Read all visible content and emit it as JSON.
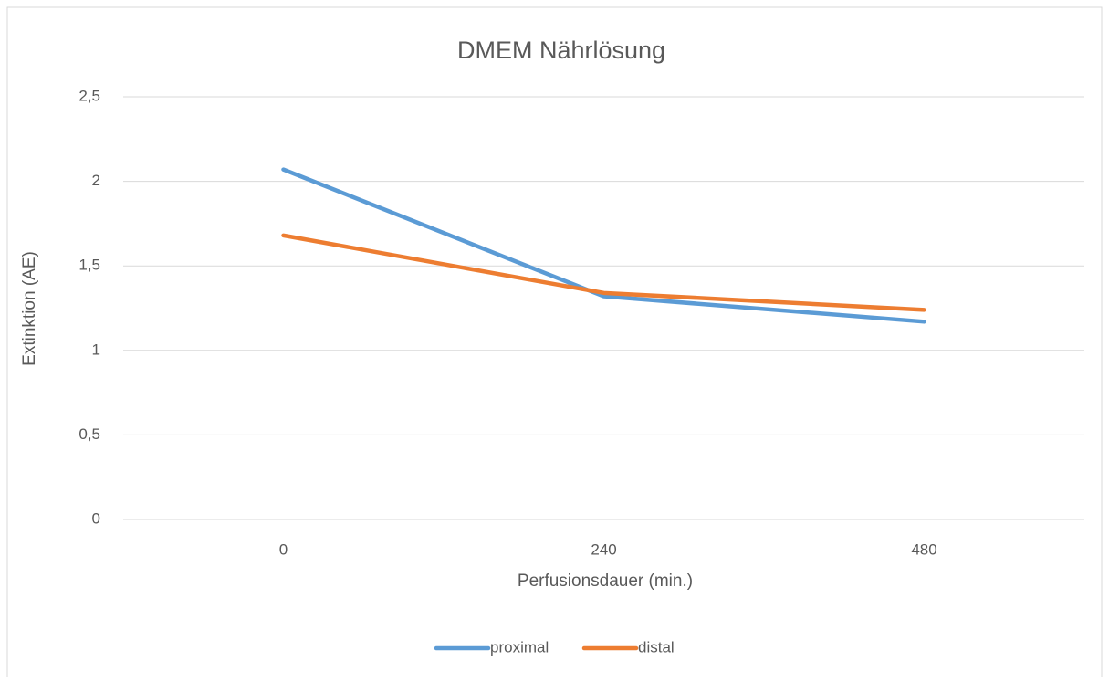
{
  "chart_data": {
    "type": "line",
    "title": "DMEM Nährlösung",
    "x_label": "Perfusionsdauer (min.)",
    "y_label": "Extinktion (AE)",
    "categories": [
      "0",
      "240",
      "480"
    ],
    "series": [
      {
        "name": "proximal",
        "color": "#5b9bd5",
        "values": [
          2.07,
          1.32,
          1.17
        ]
      },
      {
        "name": "distal",
        "color": "#ed7d31",
        "values": [
          1.68,
          1.34,
          1.24
        ]
      }
    ],
    "ylim": [
      0,
      2.5
    ],
    "yticks": [
      0,
      {
        "value": 0.5,
        "label": "0,5"
      },
      1,
      {
        "value": 1.5,
        "label": "1,5"
      },
      2,
      {
        "value": 2.5,
        "label": "2,5"
      }
    ],
    "grid": true,
    "legend": "bottom"
  }
}
